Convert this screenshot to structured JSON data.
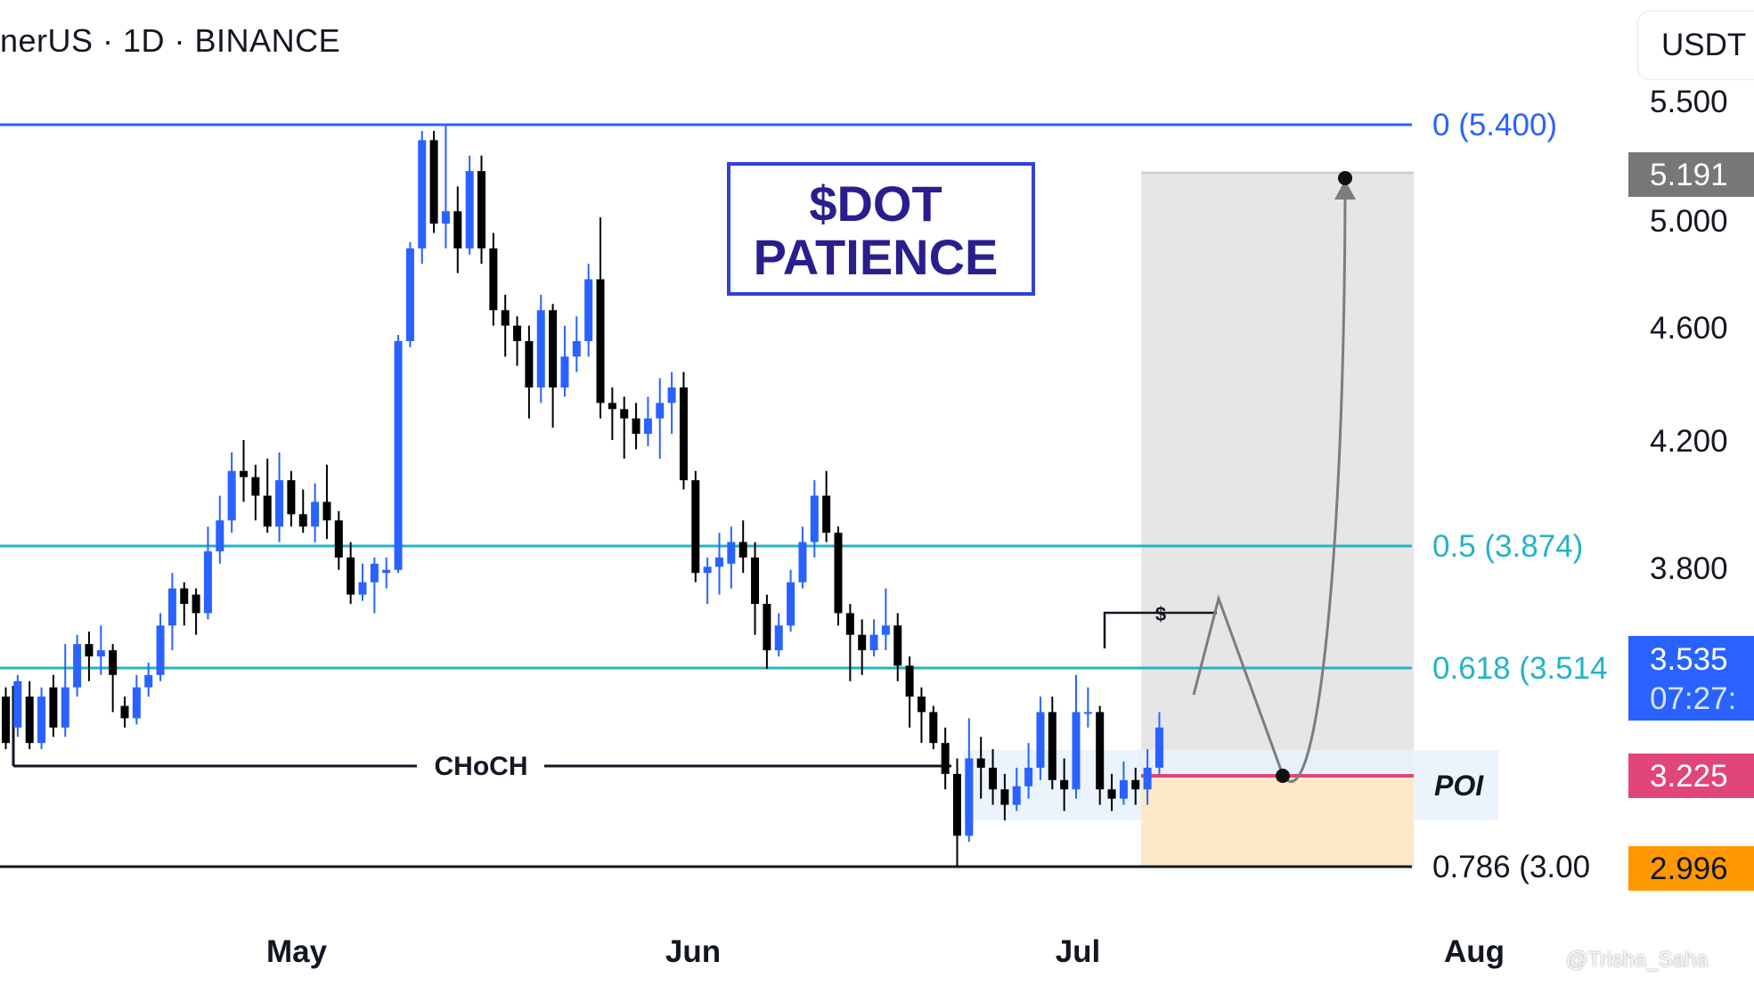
{
  "header": {
    "symbol": "nerUS · 1D · BINANCE",
    "currency": "USDT"
  },
  "title_box": {
    "line1": "$DOT",
    "line2": "PATIENCE"
  },
  "watermark": "@Trisha_Saha",
  "colors": {
    "bull": "#2962ff",
    "bear": "#000000",
    "fib_top": "#2962ff",
    "fib_mid": "#26b2c9",
    "poi": "#e0457b",
    "box_text": "#2a1e8e",
    "box_border": "#2f42d6",
    "orange": "#ff9800"
  },
  "chart_data": {
    "type": "candlestick",
    "interval": "1D",
    "exchange": "BINANCE",
    "x_ticks": [
      "May",
      "Jun",
      "Jul",
      "Aug"
    ],
    "y_ticks": [
      5.5,
      5.0,
      4.6,
      4.2,
      3.8
    ],
    "y_tick_labels": [
      "5.500",
      "5.000",
      "4.600",
      "4.200",
      "3.800"
    ],
    "fib_levels": [
      {
        "label": "0 (5.400)",
        "value": 5.4
      },
      {
        "label": "0.5 (3.874)",
        "value": 3.874
      },
      {
        "label": "0.618 (3.514",
        "value": 3.514
      },
      {
        "label": "0.786 (3.00",
        "value": 3.0
      }
    ],
    "price_tags": [
      {
        "value": 5.191,
        "label": "5.191",
        "color": "#777777"
      },
      {
        "value": 3.535,
        "label": "3.535",
        "sub": "07:27:",
        "color": "#2962ff"
      },
      {
        "value": 3.225,
        "label": "3.225",
        "color": "#e0457b"
      },
      {
        "value": 2.996,
        "label": "2.996",
        "color": "#ff9800"
      }
    ],
    "annotations": {
      "choch": "CHoCH",
      "poi": "POI",
      "liquidity": "$",
      "target": 5.191,
      "entry": 3.225
    },
    "candles": [
      [
        3.55,
        3.4,
        3.58,
        3.38
      ],
      [
        3.45,
        3.6,
        3.62,
        3.42
      ],
      [
        3.55,
        3.4,
        3.6,
        3.38
      ],
      [
        3.4,
        3.55,
        3.58,
        3.38
      ],
      [
        3.58,
        3.45,
        3.62,
        3.42
      ],
      [
        3.45,
        3.58,
        3.72,
        3.42
      ],
      [
        3.58,
        3.72,
        3.75,
        3.55
      ],
      [
        3.72,
        3.68,
        3.76,
        3.6
      ],
      [
        3.68,
        3.7,
        3.78,
        3.62
      ],
      [
        3.7,
        3.62,
        3.72,
        3.5
      ],
      [
        3.52,
        3.48,
        3.55,
        3.45
      ],
      [
        3.48,
        3.58,
        3.62,
        3.46
      ],
      [
        3.58,
        3.62,
        3.66,
        3.55
      ],
      [
        3.62,
        3.78,
        3.82,
        3.6
      ],
      [
        3.78,
        3.9,
        3.95,
        3.7
      ],
      [
        3.9,
        3.85,
        3.92,
        3.78
      ],
      [
        3.88,
        3.82,
        3.9,
        3.75
      ],
      [
        3.82,
        4.02,
        4.1,
        3.8
      ],
      [
        4.02,
        4.12,
        4.2,
        3.98
      ],
      [
        4.12,
        4.28,
        4.34,
        4.08
      ],
      [
        4.28,
        4.26,
        4.38,
        4.18
      ],
      [
        4.26,
        4.2,
        4.3,
        4.12
      ],
      [
        4.2,
        4.1,
        4.32,
        4.08
      ],
      [
        4.1,
        4.25,
        4.34,
        4.05
      ],
      [
        4.25,
        4.14,
        4.28,
        4.1
      ],
      [
        4.14,
        4.1,
        4.22,
        4.08
      ],
      [
        4.1,
        4.18,
        4.24,
        4.05
      ],
      [
        4.18,
        4.12,
        4.3,
        4.06
      ],
      [
        4.12,
        4.0,
        4.15,
        3.96
      ],
      [
        4.0,
        3.88,
        4.05,
        3.85
      ],
      [
        3.88,
        3.92,
        3.98,
        3.86
      ],
      [
        3.92,
        3.98,
        4.0,
        3.82
      ],
      [
        3.95,
        3.96,
        4.0,
        3.9
      ],
      [
        3.96,
        4.7,
        4.72,
        3.95
      ],
      [
        4.7,
        5.0,
        5.02,
        4.68
      ],
      [
        5.0,
        5.35,
        5.38,
        4.95
      ],
      [
        5.35,
        5.08,
        5.38,
        5.05
      ],
      [
        5.08,
        5.12,
        5.4,
        5.0
      ],
      [
        5.12,
        5.0,
        5.2,
        4.92
      ],
      [
        5.0,
        5.25,
        5.3,
        4.98
      ],
      [
        5.25,
        5.0,
        5.3,
        4.95
      ],
      [
        5.0,
        4.8,
        5.05,
        4.75
      ],
      [
        4.8,
        4.75,
        4.85,
        4.65
      ],
      [
        4.75,
        4.7,
        4.78,
        4.62
      ],
      [
        4.7,
        4.55,
        4.75,
        4.45
      ],
      [
        4.55,
        4.8,
        4.85,
        4.5
      ],
      [
        4.8,
        4.55,
        4.82,
        4.42
      ],
      [
        4.55,
        4.65,
        4.75,
        4.52
      ],
      [
        4.65,
        4.7,
        4.78,
        4.6
      ],
      [
        4.7,
        4.9,
        4.95,
        4.65
      ],
      [
        4.9,
        4.5,
        5.1,
        4.45
      ],
      [
        4.5,
        4.48,
        4.55,
        4.38
      ],
      [
        4.48,
        4.45,
        4.52,
        4.32
      ],
      [
        4.45,
        4.4,
        4.5,
        4.35
      ],
      [
        4.4,
        4.45,
        4.52,
        4.36
      ],
      [
        4.45,
        4.5,
        4.58,
        4.32
      ],
      [
        4.5,
        4.55,
        4.6,
        4.4
      ],
      [
        4.55,
        4.25,
        4.6,
        4.22
      ],
      [
        4.25,
        3.95,
        4.28,
        3.92
      ],
      [
        3.95,
        3.97,
        4.0,
        3.85
      ],
      [
        3.97,
        4.0,
        4.08,
        3.88
      ],
      [
        3.98,
        4.05,
        4.1,
        3.9
      ],
      [
        4.05,
        4.0,
        4.12,
        3.95
      ],
      [
        4.0,
        3.85,
        4.05,
        3.75
      ],
      [
        3.85,
        3.7,
        3.88,
        3.64
      ],
      [
        3.7,
        3.78,
        3.82,
        3.68
      ],
      [
        3.78,
        3.92,
        3.96,
        3.76
      ],
      [
        3.92,
        4.05,
        4.1,
        3.9
      ],
      [
        4.05,
        4.2,
        4.25,
        4.0
      ],
      [
        4.2,
        4.08,
        4.28,
        4.05
      ],
      [
        4.08,
        3.82,
        4.1,
        3.78
      ],
      [
        3.82,
        3.75,
        3.85,
        3.6
      ],
      [
        3.75,
        3.7,
        3.8,
        3.62
      ],
      [
        3.7,
        3.75,
        3.8,
        3.68
      ],
      [
        3.75,
        3.78,
        3.9,
        3.7
      ],
      [
        3.78,
        3.65,
        3.82,
        3.6
      ],
      [
        3.65,
        3.55,
        3.68,
        3.45
      ],
      [
        3.55,
        3.5,
        3.58,
        3.4
      ],
      [
        3.5,
        3.4,
        3.52,
        3.38
      ],
      [
        3.4,
        3.3,
        3.45,
        3.25
      ],
      [
        3.3,
        3.1,
        3.35,
        3.0
      ],
      [
        3.1,
        3.35,
        3.48,
        3.08
      ],
      [
        3.35,
        3.32,
        3.42,
        3.22
      ],
      [
        3.32,
        3.25,
        3.38,
        3.2
      ],
      [
        3.25,
        3.2,
        3.3,
        3.15
      ],
      [
        3.2,
        3.26,
        3.32,
        3.18
      ],
      [
        3.26,
        3.32,
        3.4,
        3.22
      ],
      [
        3.32,
        3.5,
        3.55,
        3.28
      ],
      [
        3.5,
        3.28,
        3.55,
        3.25
      ],
      [
        3.28,
        3.25,
        3.35,
        3.18
      ],
      [
        3.25,
        3.5,
        3.62,
        3.22
      ],
      [
        3.5,
        3.5,
        3.58,
        3.45
      ],
      [
        3.5,
        3.25,
        3.52,
        3.2
      ],
      [
        3.25,
        3.22,
        3.3,
        3.18
      ],
      [
        3.22,
        3.28,
        3.34,
        3.2
      ],
      [
        3.28,
        3.25,
        3.32,
        3.2
      ],
      [
        3.25,
        3.32,
        3.38,
        3.2
      ],
      [
        3.32,
        3.45,
        3.5,
        3.3
      ]
    ]
  }
}
